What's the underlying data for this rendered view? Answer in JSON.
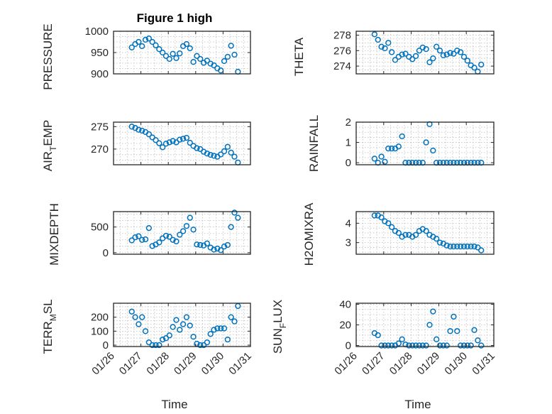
{
  "figure": {
    "title": "Figure 1 high",
    "marker_color": "#0072BD"
  },
  "chart_data": [
    {
      "type": "scatter",
      "id": "pressure",
      "ylabel": "PRESSURE",
      "xlabel": "",
      "title": "Figure 1 high",
      "column": 0,
      "row": 0,
      "xlim": [
        "01/26",
        "01/31"
      ],
      "ylim": [
        900,
        1000
      ],
      "yticks": [
        900,
        950,
        1000
      ],
      "ytick_labels": [
        "900",
        "950",
        "1000"
      ],
      "xticks": [
        "01/26",
        "01/27",
        "01/28",
        "01/29",
        "01/30",
        "01/31"
      ],
      "show_xtick_labels": false,
      "x": [
        "01/26 16:00",
        "01/26 19:00",
        "01/26 22:00",
        "01/27 01:00",
        "01/27 04:00",
        "01/27 07:00",
        "01/27 10:00",
        "01/27 13:00",
        "01/27 16:00",
        "01/27 19:00",
        "01/27 22:00",
        "01/28 01:00",
        "01/28 04:00",
        "01/28 07:00",
        "01/28 10:00",
        "01/28 13:00",
        "01/28 16:00",
        "01/28 19:00",
        "01/28 22:00",
        "01/29 01:00",
        "01/29 04:00",
        "01/29 07:00",
        "01/29 10:00",
        "01/29 13:00",
        "01/29 16:00",
        "01/29 19:00",
        "01/29 22:00",
        "01/30 01:00",
        "01/30 04:00",
        "01/30 07:00",
        "01/30 10:00",
        "01/30 13:00"
      ],
      "y": [
        962,
        970,
        975,
        965,
        980,
        983,
        975,
        967,
        958,
        950,
        942,
        935,
        947,
        937,
        948,
        965,
        970,
        960,
        928,
        942,
        935,
        926,
        931,
        924,
        920,
        913,
        908,
        930,
        940,
        966,
        945,
        905
      ]
    },
    {
      "type": "scatter",
      "id": "theta",
      "ylabel": "THETA",
      "xlabel": "",
      "column": 1,
      "row": 0,
      "xlim": [
        "01/26",
        "01/31"
      ],
      "ylim": [
        273,
        278.5
      ],
      "yticks": [
        274,
        276,
        278
      ],
      "ytick_labels": [
        "274",
        "276",
        "278"
      ],
      "xticks": [
        "01/26",
        "01/27",
        "01/28",
        "01/29",
        "01/30",
        "01/31"
      ],
      "show_xtick_labels": false,
      "x": [
        "01/26 16:00",
        "01/26 19:00",
        "01/26 22:00",
        "01/27 01:00",
        "01/27 04:00",
        "01/27 07:00",
        "01/27 10:00",
        "01/27 13:00",
        "01/27 16:00",
        "01/27 19:00",
        "01/27 22:00",
        "01/28 01:00",
        "01/28 04:00",
        "01/28 07:00",
        "01/28 10:00",
        "01/28 13:00",
        "01/28 16:00",
        "01/28 19:00",
        "01/28 22:00",
        "01/29 01:00",
        "01/29 04:00",
        "01/29 07:00",
        "01/29 10:00",
        "01/29 13:00",
        "01/29 16:00",
        "01/29 19:00",
        "01/29 22:00",
        "01/30 01:00",
        "01/30 04:00",
        "01/30 07:00",
        "01/30 10:00",
        "01/30 13:00"
      ],
      "y": [
        278.1,
        277.4,
        276.5,
        276.3,
        277.0,
        275.8,
        274.8,
        275.2,
        275.5,
        275.6,
        275.2,
        274.9,
        275.3,
        276.0,
        276.4,
        276.2,
        274.5,
        275.0,
        276.5,
        276.0,
        275.4,
        275.5,
        275.7,
        275.6,
        276.0,
        275.8,
        275.2,
        274.7,
        274.1,
        273.8,
        273.3,
        274.2
      ]
    },
    {
      "type": "scatter",
      "id": "air_temp",
      "ylabel": "AIR_TEMP",
      "xlabel": "",
      "column": 0,
      "row": 1,
      "xlim": [
        "01/26",
        "01/31"
      ],
      "ylim": [
        266.5,
        276
      ],
      "yticks": [
        270,
        275
      ],
      "ytick_labels": [
        "270",
        "275"
      ],
      "xticks": [
        "01/26",
        "01/27",
        "01/28",
        "01/29",
        "01/30",
        "01/31"
      ],
      "show_xtick_labels": false,
      "x": [
        "01/26 16:00",
        "01/26 19:00",
        "01/26 22:00",
        "01/27 01:00",
        "01/27 04:00",
        "01/27 07:00",
        "01/27 10:00",
        "01/27 13:00",
        "01/27 16:00",
        "01/27 19:00",
        "01/27 22:00",
        "01/28 01:00",
        "01/28 04:00",
        "01/28 07:00",
        "01/28 10:00",
        "01/28 13:00",
        "01/28 16:00",
        "01/28 19:00",
        "01/28 22:00",
        "01/29 01:00",
        "01/29 04:00",
        "01/29 07:00",
        "01/29 10:00",
        "01/29 13:00",
        "01/29 16:00",
        "01/29 19:00",
        "01/29 22:00",
        "01/30 01:00",
        "01/30 04:00",
        "01/30 07:00",
        "01/30 10:00",
        "01/30 13:00"
      ],
      "y": [
        275.0,
        274.7,
        274.3,
        274.1,
        273.8,
        273.3,
        272.6,
        272.0,
        271.3,
        270.4,
        271.2,
        271.5,
        271.8,
        271.5,
        272.1,
        272.3,
        272.5,
        271.4,
        270.7,
        270.2,
        270.0,
        269.4,
        269.0,
        268.7,
        268.5,
        268.3,
        268.8,
        269.5,
        270.5,
        269.2,
        268.3,
        267.0
      ]
    },
    {
      "type": "scatter",
      "id": "rainfall",
      "ylabel": "RAINFALL",
      "xlabel": "",
      "column": 1,
      "row": 1,
      "xlim": [
        "01/26",
        "01/31"
      ],
      "ylim": [
        -0.1,
        2
      ],
      "yticks": [
        0,
        1,
        2
      ],
      "ytick_labels": [
        "0",
        "1",
        "2"
      ],
      "xticks": [
        "01/26",
        "01/27",
        "01/28",
        "01/29",
        "01/30",
        "01/31"
      ],
      "show_xtick_labels": false,
      "x": [
        "01/26 16:00",
        "01/26 19:00",
        "01/26 22:00",
        "01/27 01:00",
        "01/27 04:00",
        "01/27 07:00",
        "01/27 10:00",
        "01/27 13:00",
        "01/27 16:00",
        "01/27 19:00",
        "01/27 22:00",
        "01/28 01:00",
        "01/28 04:00",
        "01/28 07:00",
        "01/28 10:00",
        "01/28 13:00",
        "01/28 16:00",
        "01/28 19:00",
        "01/28 22:00",
        "01/29 01:00",
        "01/29 04:00",
        "01/29 07:00",
        "01/29 10:00",
        "01/29 13:00",
        "01/29 16:00",
        "01/29 19:00",
        "01/29 22:00",
        "01/30 01:00",
        "01/30 04:00",
        "01/30 07:00",
        "01/30 10:00",
        "01/30 13:00"
      ],
      "y": [
        0.2,
        0.0,
        0.3,
        0.05,
        0.7,
        0.7,
        0.7,
        0.8,
        1.3,
        0.0,
        0.0,
        0.0,
        0.0,
        0.0,
        0.0,
        1.0,
        1.9,
        0.6,
        0.0,
        0.0,
        0.0,
        0.0,
        0.0,
        0.0,
        0.0,
        0.0,
        0.0,
        0.0,
        0.0,
        0.0,
        0.0,
        0.0
      ]
    },
    {
      "type": "scatter",
      "id": "mixdepth",
      "ylabel": "MIXDEPTH",
      "xlabel": "",
      "column": 0,
      "row": 2,
      "xlim": [
        "01/26",
        "01/31"
      ],
      "ylim": [
        -30,
        800
      ],
      "yticks": [
        0,
        500
      ],
      "ytick_labels": [
        "0",
        "500"
      ],
      "xticks": [
        "01/26",
        "01/27",
        "01/28",
        "01/29",
        "01/30",
        "01/31"
      ],
      "show_xtick_labels": false,
      "x": [
        "01/26 16:00",
        "01/26 19:00",
        "01/26 22:00",
        "01/27 01:00",
        "01/27 04:00",
        "01/27 07:00",
        "01/27 10:00",
        "01/27 13:00",
        "01/27 16:00",
        "01/27 19:00",
        "01/27 22:00",
        "01/28 01:00",
        "01/28 04:00",
        "01/28 07:00",
        "01/28 10:00",
        "01/28 13:00",
        "01/28 16:00",
        "01/28 19:00",
        "01/28 22:00",
        "01/29 01:00",
        "01/29 04:00",
        "01/29 07:00",
        "01/29 10:00",
        "01/29 13:00",
        "01/29 16:00",
        "01/29 19:00",
        "01/29 22:00",
        "01/30 01:00",
        "01/30 04:00",
        "01/30 07:00",
        "01/30 10:00",
        "01/30 13:00"
      ],
      "y": [
        240,
        300,
        320,
        250,
        260,
        480,
        130,
        160,
        200,
        280,
        330,
        310,
        250,
        220,
        350,
        420,
        520,
        680,
        450,
        160,
        150,
        140,
        180,
        100,
        60,
        80,
        50,
        120,
        150,
        500,
        780,
        680
      ]
    },
    {
      "type": "scatter",
      "id": "h2omixra",
      "ylabel": "H2OMIXRA",
      "xlabel": "",
      "column": 1,
      "row": 2,
      "xlim": [
        "01/26",
        "01/31"
      ],
      "ylim": [
        2.4,
        4.6
      ],
      "yticks": [
        3,
        4
      ],
      "ytick_labels": [
        "3",
        "4"
      ],
      "xticks": [
        "01/26",
        "01/27",
        "01/28",
        "01/29",
        "01/30",
        "01/31"
      ],
      "show_xtick_labels": false,
      "x": [
        "01/26 16:00",
        "01/26 19:00",
        "01/26 22:00",
        "01/27 01:00",
        "01/27 04:00",
        "01/27 07:00",
        "01/27 10:00",
        "01/27 13:00",
        "01/27 16:00",
        "01/27 19:00",
        "01/27 22:00",
        "01/28 01:00",
        "01/28 04:00",
        "01/28 07:00",
        "01/28 10:00",
        "01/28 13:00",
        "01/28 16:00",
        "01/28 19:00",
        "01/28 22:00",
        "01/29 01:00",
        "01/29 04:00",
        "01/29 07:00",
        "01/29 10:00",
        "01/29 13:00",
        "01/29 16:00",
        "01/29 19:00",
        "01/29 22:00",
        "01/30 01:00",
        "01/30 04:00",
        "01/30 07:00",
        "01/30 10:00",
        "01/30 13:00"
      ],
      "y": [
        4.4,
        4.4,
        4.3,
        4.1,
        4.0,
        3.8,
        3.6,
        3.5,
        3.3,
        3.4,
        3.4,
        3.3,
        3.4,
        3.6,
        3.7,
        3.6,
        3.4,
        3.3,
        3.2,
        3.0,
        2.95,
        2.85,
        2.8,
        2.8,
        2.8,
        2.8,
        2.8,
        2.8,
        2.8,
        2.8,
        2.75,
        2.6
      ]
    },
    {
      "type": "scatter",
      "id": "terr_msl",
      "ylabel": "TERR_MSL",
      "xlabel": "Time",
      "column": 0,
      "row": 3,
      "xlim": [
        "01/26",
        "01/31"
      ],
      "ylim": [
        -10,
        300
      ],
      "yticks": [
        0,
        100,
        200
      ],
      "ytick_labels": [
        "0",
        "100",
        "200"
      ],
      "xticks": [
        "01/26",
        "01/27",
        "01/28",
        "01/29",
        "01/30",
        "01/31"
      ],
      "show_xtick_labels": true,
      "x": [
        "01/26 16:00",
        "01/26 19:00",
        "01/26 22:00",
        "01/27 01:00",
        "01/27 04:00",
        "01/27 07:00",
        "01/27 10:00",
        "01/27 13:00",
        "01/27 16:00",
        "01/27 19:00",
        "01/27 22:00",
        "01/28 01:00",
        "01/28 04:00",
        "01/28 07:00",
        "01/28 10:00",
        "01/28 13:00",
        "01/28 16:00",
        "01/28 19:00",
        "01/28 22:00",
        "01/29 01:00",
        "01/29 04:00",
        "01/29 07:00",
        "01/29 10:00",
        "01/29 13:00",
        "01/29 16:00",
        "01/29 19:00",
        "01/29 22:00",
        "01/30 01:00",
        "01/30 04:00",
        "01/30 07:00",
        "01/30 10:00",
        "01/30 13:00"
      ],
      "y": [
        240,
        200,
        150,
        200,
        100,
        20,
        0,
        0,
        0,
        40,
        50,
        70,
        130,
        180,
        110,
        150,
        200,
        140,
        60,
        10,
        0,
        0,
        20,
        80,
        110,
        120,
        120,
        120,
        40,
        200,
        170,
        280
      ]
    },
    {
      "type": "scatter",
      "id": "sun_flux",
      "ylabel": "SUN_FLUX",
      "xlabel": "Time",
      "column": 1,
      "row": 3,
      "xlim": [
        "01/26",
        "01/31"
      ],
      "ylim": [
        -1,
        41
      ],
      "yticks": [
        0,
        20,
        40
      ],
      "ytick_labels": [
        "0",
        "20",
        "40"
      ],
      "xticks": [
        "01/26",
        "01/27",
        "01/28",
        "01/29",
        "01/30",
        "01/31"
      ],
      "show_xtick_labels": true,
      "x": [
        "01/26 16:00",
        "01/26 19:00",
        "01/26 22:00",
        "01/27 01:00",
        "01/27 04:00",
        "01/27 07:00",
        "01/27 10:00",
        "01/27 13:00",
        "01/27 16:00",
        "01/27 19:00",
        "01/27 22:00",
        "01/28 01:00",
        "01/28 04:00",
        "01/28 07:00",
        "01/28 10:00",
        "01/28 13:00",
        "01/28 16:00",
        "01/28 19:00",
        "01/28 22:00",
        "01/29 01:00",
        "01/29 04:00",
        "01/29 07:00",
        "01/29 10:00",
        "01/29 13:00",
        "01/29 16:00",
        "01/29 19:00",
        "01/29 22:00",
        "01/30 01:00",
        "01/30 04:00",
        "01/30 07:00",
        "01/30 10:00",
        "01/30 13:00"
      ],
      "y": [
        12,
        10,
        0,
        0,
        0,
        0,
        0,
        2,
        6,
        1,
        0,
        0,
        0,
        0,
        0,
        0,
        20,
        33,
        6,
        0,
        0,
        0,
        14,
        28,
        14,
        0,
        0,
        0,
        0,
        15,
        5,
        0
      ]
    }
  ],
  "tick_labels": {
    "x": [
      "01/26",
      "01/27",
      "01/28",
      "01/29",
      "01/30",
      "01/31"
    ]
  },
  "labels": {
    "pressure": "PRESSURE",
    "theta": "THETA",
    "air_temp_main": "AIR",
    "air_temp_sub": "T",
    "air_temp_tail": "EMP",
    "rainfall": "RAINFALL",
    "mixdepth": "MIXDEPTH",
    "h2omixra": "H2OMIXRA",
    "terr_main": "TERR",
    "terr_sub": "M",
    "terr_tail": "SL",
    "sun_main": "SUN",
    "sun_sub": "F",
    "sun_tail": "LUX",
    "time_left": "Time",
    "time_right": "Time"
  }
}
